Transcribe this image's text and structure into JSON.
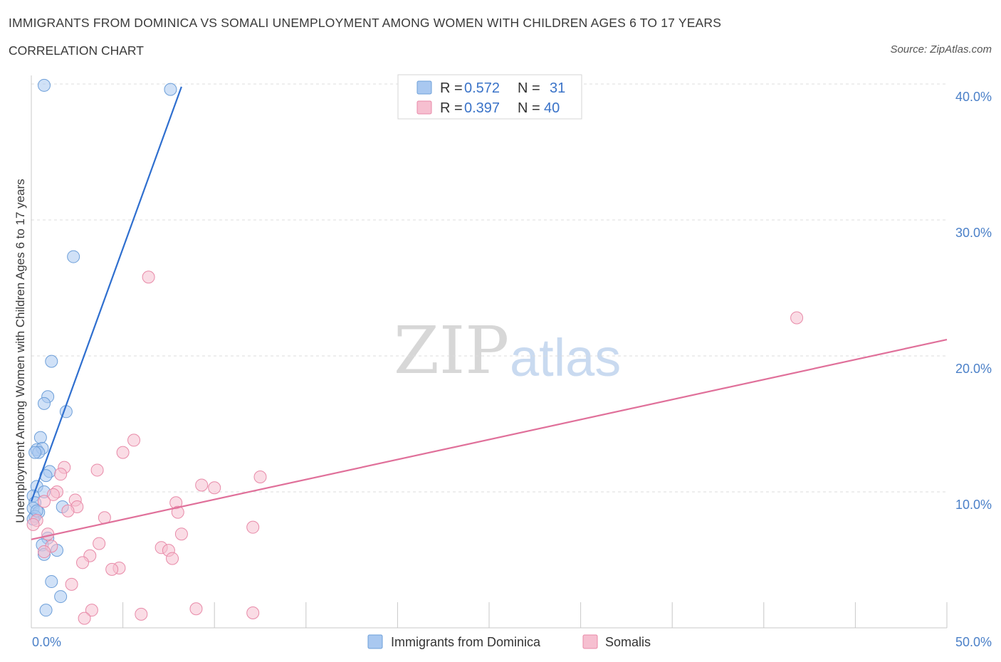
{
  "chart_data": {
    "type": "scatter",
    "title": "IMMIGRANTS FROM DOMINICA VS SOMALI UNEMPLOYMENT AMONG WOMEN WITH CHILDREN AGES 6 TO 17 YEARS",
    "subtitle": "CORRELATION CHART",
    "source": "Source: ZipAtlas.com",
    "xlabel": "",
    "ylabel": "Unemployment Among Women with Children Ages 6 to 17 years",
    "xlim": [
      0,
      50
    ],
    "ylim": [
      0,
      40
    ],
    "x_tick_labels": [
      "0.0%",
      "50.0%"
    ],
    "y_ticks": [
      10,
      20,
      30,
      40
    ],
    "y_tick_labels": [
      "10.0%",
      "20.0%",
      "30.0%",
      "40.0%"
    ],
    "grid": true,
    "legend_position": "top-center",
    "watermark": {
      "zip": "ZIP",
      "atlas": "atlas"
    },
    "series": [
      {
        "name": "Immigrants from Dominica",
        "color": "#a9c8f0",
        "stroke": "#6d9fd9",
        "line_color": "#2f6fcf",
        "r_label": "R = ",
        "r": "0.572",
        "n_label": "N = ",
        "n": "31",
        "trend": {
          "x0": 0.0,
          "y0": 9.3,
          "x1": 8.2,
          "y1": 39.8
        },
        "points": [
          [
            0.7,
            39.9
          ],
          [
            7.6,
            39.6
          ],
          [
            2.3,
            27.3
          ],
          [
            1.1,
            19.6
          ],
          [
            0.9,
            17.0
          ],
          [
            0.7,
            16.5
          ],
          [
            1.9,
            15.9
          ],
          [
            0.5,
            14.0
          ],
          [
            0.3,
            13.1
          ],
          [
            0.6,
            13.2
          ],
          [
            0.4,
            12.9
          ],
          [
            0.2,
            12.9
          ],
          [
            1.0,
            11.5
          ],
          [
            0.8,
            11.2
          ],
          [
            0.3,
            10.4
          ],
          [
            0.7,
            10.0
          ],
          [
            0.1,
            9.7
          ],
          [
            0.2,
            9.2
          ],
          [
            0.1,
            8.8
          ],
          [
            0.4,
            8.5
          ],
          [
            1.7,
            8.9
          ],
          [
            0.2,
            8.2
          ],
          [
            0.9,
            6.6
          ],
          [
            0.6,
            6.1
          ],
          [
            1.4,
            5.7
          ],
          [
            0.7,
            5.4
          ],
          [
            1.1,
            3.4
          ],
          [
            1.6,
            2.3
          ],
          [
            0.8,
            1.3
          ],
          [
            0.1,
            8.0
          ],
          [
            0.3,
            8.6
          ]
        ]
      },
      {
        "name": "Somalis",
        "color": "#f6bfd0",
        "stroke": "#e88aa8",
        "line_color": "#e0709a",
        "r_label": "R = ",
        "r": "0.397",
        "n_label": "N = ",
        "n": "40",
        "trend": {
          "x0": 0.0,
          "y0": 6.5,
          "x1": 50.0,
          "y1": 21.2
        },
        "points": [
          [
            6.4,
            25.8
          ],
          [
            41.8,
            22.8
          ],
          [
            5.6,
            13.8
          ],
          [
            5.0,
            12.9
          ],
          [
            1.8,
            11.8
          ],
          [
            3.6,
            11.6
          ],
          [
            1.6,
            11.3
          ],
          [
            12.5,
            11.1
          ],
          [
            9.3,
            10.5
          ],
          [
            10.0,
            10.3
          ],
          [
            1.4,
            10.0
          ],
          [
            1.2,
            9.8
          ],
          [
            2.4,
            9.4
          ],
          [
            0.7,
            9.3
          ],
          [
            7.9,
            9.2
          ],
          [
            2.5,
            8.9
          ],
          [
            2.0,
            8.6
          ],
          [
            8.0,
            8.5
          ],
          [
            4.0,
            8.1
          ],
          [
            0.3,
            7.9
          ],
          [
            0.1,
            7.6
          ],
          [
            12.1,
            7.4
          ],
          [
            8.2,
            6.9
          ],
          [
            0.9,
            6.9
          ],
          [
            3.7,
            6.2
          ],
          [
            1.1,
            6.0
          ],
          [
            7.1,
            5.9
          ],
          [
            7.5,
            5.7
          ],
          [
            0.7,
            5.6
          ],
          [
            3.2,
            5.3
          ],
          [
            7.7,
            5.1
          ],
          [
            2.8,
            4.8
          ],
          [
            4.8,
            4.4
          ],
          [
            4.4,
            4.3
          ],
          [
            2.2,
            3.2
          ],
          [
            3.3,
            1.3
          ],
          [
            6.0,
            1.0
          ],
          [
            9.0,
            1.4
          ],
          [
            12.1,
            1.1
          ],
          [
            2.9,
            0.7
          ]
        ]
      }
    ]
  }
}
